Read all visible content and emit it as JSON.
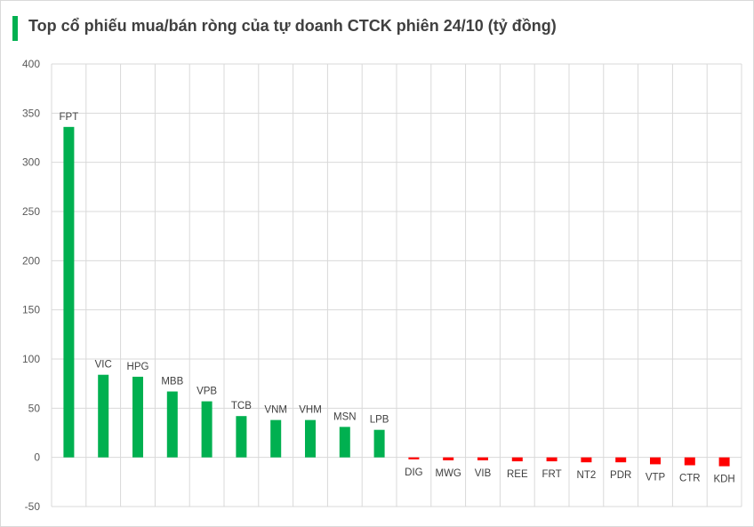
{
  "title": "Top cổ phiếu mua/bán ròng của tự doanh CTCK phiên 24/10 (tỷ đồng)",
  "colors": {
    "positive": "#00b050",
    "negative": "#ff0000",
    "accent": "#00b050",
    "grid": "#d9d9d9"
  },
  "chart_data": {
    "type": "bar",
    "title": "Top cổ phiếu mua/bán ròng của tự doanh CTCK phiên 24/10 (tỷ đồng)",
    "xlabel": "",
    "ylabel": "",
    "ylim": [
      -50,
      400
    ],
    "yticks": [
      400,
      350,
      300,
      250,
      200,
      150,
      100,
      50,
      0,
      -50
    ],
    "grid": true,
    "legend": "none",
    "categories": [
      "FPT",
      "VIC",
      "HPG",
      "MBB",
      "VPB",
      "TCB",
      "VNM",
      "VHM",
      "MSN",
      "LPB",
      "DIG",
      "MWG",
      "VIB",
      "REE",
      "FRT",
      "NT2",
      "PDR",
      "VTP",
      "CTR",
      "KDH"
    ],
    "values": [
      336,
      84,
      82,
      67,
      57,
      42,
      38,
      38,
      31,
      28,
      -2,
      -3,
      -3,
      -4,
      -4,
      -5,
      -5,
      -7,
      -8,
      -9
    ]
  }
}
